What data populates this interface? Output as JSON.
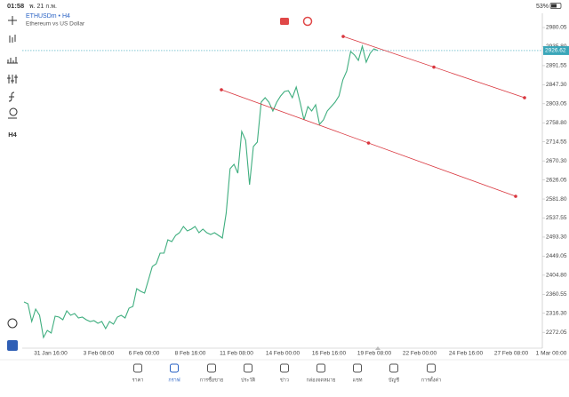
{
  "status_bar": {
    "time": "01:58",
    "date": "พ. 21 ก.พ.",
    "battery": "53%"
  },
  "symbol": {
    "name": "ETHUSDm • H4",
    "description": "Ethereum vs US Dollar"
  },
  "chart_data": {
    "type": "line",
    "color": "#3fae7f",
    "values": [
      2342.5,
      2338.5,
      2297.2,
      2326,
      2311.6,
      2260,
      2276.5,
      2270.4,
      2309.6,
      2307.5,
      2301.3,
      2322,
      2311.6,
      2315.8,
      2305.5,
      2307.5,
      2301.3,
      2297.2,
      2299.3,
      2293,
      2297.2,
      2280.7,
      2297.2,
      2291,
      2307.5,
      2311.6,
      2305.5,
      2328.2,
      2332.3,
      2373.5,
      2367.3,
      2363.2,
      2394.2,
      2425,
      2431.3,
      2456,
      2456,
      2487,
      2482.9,
      2497.3,
      2503.5,
      2518,
      2507.6,
      2511.8,
      2518,
      2503.5,
      2511.8,
      2503.5,
      2499.4,
      2503.5,
      2497.3,
      2491.1,
      2548.9,
      2652,
      2662.3,
      2641.7,
      2738.7,
      2718,
      2614.9,
      2703.6,
      2713.9,
      2806.8,
      2817,
      2806.8,
      2786.1,
      2806.8,
      2821.2,
      2831.5,
      2833.5,
      2817,
      2841.8,
      2806.8,
      2765.5,
      2796.4,
      2786.1,
      2800.5,
      2755.2,
      2765.5,
      2786.1,
      2796.4,
      2806.8,
      2821.2,
      2858.3,
      2879,
      2924.3,
      2916.1,
      2903.7,
      2936.7,
      2899.6,
      2920.2,
      2930.5,
      2926.62
    ],
    "ylim": [
      2235.3,
      3013.1
    ],
    "yticks": [
      2980.05,
      {
        "value": 2935.8,
        "label": "2935.80"
      },
      2891.55,
      {
        "value": 2847.3,
        "label": "2847.30"
      },
      2803.05,
      {
        "value": 2758.8,
        "label": "2758.80"
      },
      2714.55,
      {
        "value": 2670.3,
        "label": "2670.30"
      },
      2626.05,
      {
        "value": 2581.8,
        "label": "2581.80"
      },
      2537.55,
      {
        "value": 2493.3,
        "label": "2493.30"
      },
      2449.05,
      {
        "value": 2404.8,
        "label": "2404.80"
      },
      2360.55,
      {
        "value": 2316.3,
        "label": "2316.30"
      },
      2272.05
    ],
    "current_price": 2926.62,
    "x_labels": [
      "31 Jan 16:00",
      "3 Feb 08:00",
      "6 Feb 00:00",
      "8 Feb 16:00",
      "11 Feb 08:00",
      "14 Feb 00:00",
      "16 Feb 16:00",
      "19 Feb 08:00",
      "22 Feb 00:00",
      "24 Feb 16:00",
      "27 Feb 08:00",
      "1 Mar 00:00"
    ],
    "trend_color": "#d9363e",
    "trend_lines": [
      {
        "start": 2959.4,
        "end": 2817.1
      },
      {
        "start": 2835.6,
        "end": 2588.1
      }
    ]
  },
  "nav": [
    "ราคา",
    "กราฟ",
    "การซื้อขาย",
    "ประวัติ",
    "ข่าว",
    "กล่องจดหมาย",
    "แชท",
    "บัญชี",
    "การตั้งค่า"
  ]
}
